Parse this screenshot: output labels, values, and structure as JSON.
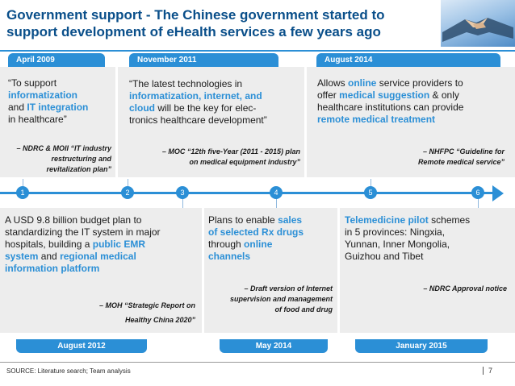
{
  "slide": {
    "title_line1": "Government support - The Chinese government started to",
    "title_line2": "support development of eHealth services a few years ago",
    "image_icon": "handshake-photo"
  },
  "timeline": {
    "markers": [
      "1",
      "2",
      "3",
      "4",
      "5",
      "6"
    ]
  },
  "upper": [
    {
      "date": "April 2009",
      "text": [
        {
          "t": "“To support",
          "h": false
        },
        {
          "t": "informatization",
          "h": true
        },
        {
          "t": "and ",
          "h": false
        },
        {
          "t": "IT integration",
          "h": true
        },
        {
          "t": "in healthcare”",
          "h": false
        }
      ],
      "source": "– NDRC & MOII “IT industry restructuring and revitalization plan”"
    },
    {
      "date": "November 2011",
      "text_a": "“The latest technologies in",
      "text_b_hl": "informatization, internet, and",
      "text_c_hl": "cloud",
      "text_c_rest": " will be the key for elec-",
      "text_d": "tronics healthcare development”",
      "source_line1": "– MOC “12th five-Year (2011 - 2015) plan",
      "source_line2": "on medical equipment industry”"
    },
    {
      "date": "August 2014",
      "text_a": "Allows ",
      "text_a_hl": "online",
      "text_a_rest": " service providers to",
      "text_b": "offer ",
      "text_b_hl": "medical suggestion",
      "text_b_rest": " & only",
      "text_c": "healthcare institutions can provide",
      "text_d_hl": "remote medical treatment",
      "source_line1": "– NHFPC “Guideline for",
      "source_line2": "Remote medical service”"
    }
  ],
  "lower": [
    {
      "date": "August 2012",
      "line1": "A USD 9.8 billion budget plan to",
      "line2": "standardizing the IT system in major",
      "line3a": "hospitals, building a ",
      "line3b_hl": "public EMR",
      "line4a_hl": "system",
      "line4b": " and ",
      "line4c_hl": "regional medical",
      "line5_hl": "information platform",
      "source_line1": "– MOH “Strategic Report on",
      "source_line2": "Healthy China 2020”"
    },
    {
      "date": "May 2014",
      "line1a": "Plans to enable ",
      "line1b_hl": "sales",
      "line2_hl": "of selected Rx drugs",
      "line3a": "through ",
      "line3b_hl": "online",
      "line4_hl": "channels",
      "source_line1": "– Draft version of Internet",
      "source_line2": "supervision and management",
      "source_line3": "of  food and drug"
    },
    {
      "date": "January 2015",
      "line1a_hl": "Telemedicine pilot",
      "line1b": " schemes",
      "line2": "in 5 provinces: Ningxia,",
      "line3": "Yunnan, Inner Mongolia,",
      "line4": "Guizhou and Tibet",
      "source_line1": "– NDRC Approval notice"
    }
  ],
  "footer": {
    "source": "SOURCE: Literature search; Team analysis",
    "page": "7"
  }
}
